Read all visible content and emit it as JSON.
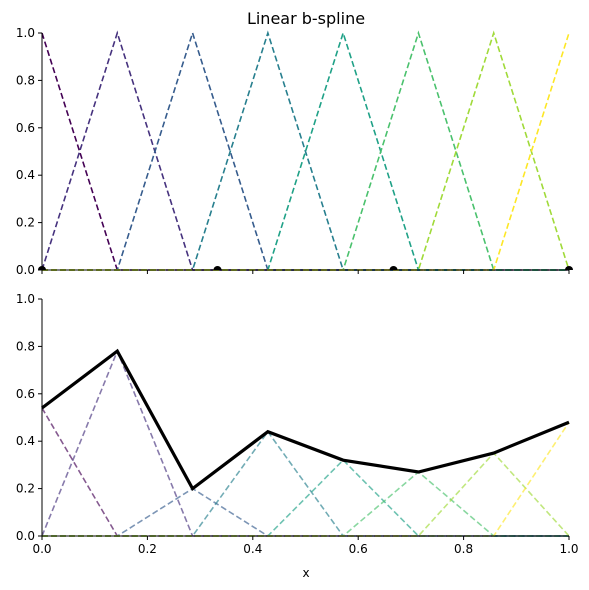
{
  "chart_data": [
    {
      "type": "line",
      "title": "Linear b-spline",
      "xlabel": "",
      "ylabel": "",
      "xlim": [
        0,
        1
      ],
      "ylim": [
        0,
        1
      ],
      "xticks": [
        "0.0",
        "0.2",
        "0.4",
        "0.6",
        "0.8",
        "1.0"
      ],
      "yticks": [
        "0.0",
        "0.2",
        "0.4",
        "0.6",
        "0.8",
        "1.0"
      ],
      "knots": [
        0,
        0.142857,
        0.285714,
        0.428571,
        0.571429,
        0.714286,
        0.857143,
        1
      ],
      "basis_colors": [
        "#440154",
        "#46327e",
        "#365c8d",
        "#277f8e",
        "#1fa187",
        "#4ac16d",
        "#a0da39",
        "#fde725"
      ],
      "basis_peak": 1.0,
      "markers": [
        {
          "x": 0.0,
          "y": 0.0
        },
        {
          "x": 0.333,
          "y": 0.0
        },
        {
          "x": 0.667,
          "y": 0.0
        },
        {
          "x": 1.0,
          "y": 0.0
        }
      ],
      "grid": false
    },
    {
      "type": "line",
      "title": "",
      "xlabel": "x",
      "ylabel": "",
      "xlim": [
        0,
        1
      ],
      "ylim": [
        0,
        1
      ],
      "xticks": [
        "0.0",
        "0.2",
        "0.4",
        "0.6",
        "0.8",
        "1.0"
      ],
      "yticks": [
        "0.0",
        "0.2",
        "0.4",
        "0.6",
        "0.8",
        "1.0"
      ],
      "knots": [
        0,
        0.142857,
        0.285714,
        0.428571,
        0.571429,
        0.714286,
        0.857143,
        1
      ],
      "coefficients": [
        0.54,
        0.78,
        0.2,
        0.44,
        0.32,
        0.27,
        0.35,
        0.48
      ],
      "basis_colors": [
        "#440154",
        "#46327e",
        "#365c8d",
        "#277f8e",
        "#1fa187",
        "#4ac16d",
        "#a0da39",
        "#fde725"
      ],
      "spline_color": "#000000",
      "grid": false
    }
  ]
}
